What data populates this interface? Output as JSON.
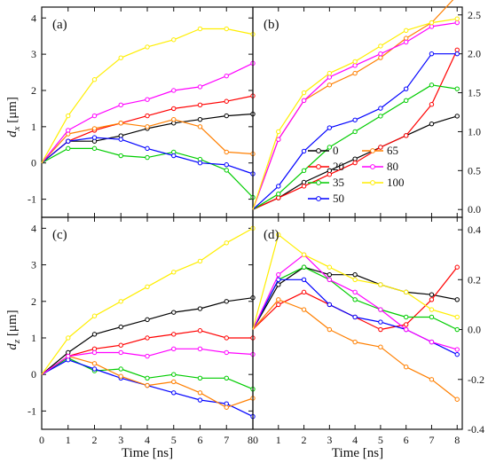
{
  "figure": {
    "x_axis_label": "Time [ns]",
    "x_ticks_left": [
      "0",
      "1",
      "2",
      "3",
      "4",
      "5",
      "6",
      "7",
      "80"
    ],
    "x_ticks_right": [
      "1",
      "2",
      "3",
      "4",
      "5",
      "6",
      "7",
      "8"
    ],
    "ylabel_top": "d",
    "ylabel_top_sub": "x",
    "ylabel_top_unit": " [μm]",
    "ylabel_bottom": "d",
    "ylabel_bottom_sub": "z",
    "ylabel_bottom_unit": " [μm]"
  },
  "legend": {
    "entries": [
      {
        "label": "0",
        "color": "#000000"
      },
      {
        "label": "65",
        "color": "#ff7f00"
      },
      {
        "label": "20",
        "color": "#ff0000"
      },
      {
        "label": "80",
        "color": "#ff00ff"
      },
      {
        "label": "35",
        "color": "#00cc00"
      },
      {
        "label": "100",
        "color": "#ffee00"
      },
      {
        "label": "50",
        "color": "#0000ff"
      }
    ]
  },
  "chart_data": [
    {
      "panel_label": "(a)",
      "type": "line",
      "xlim": [
        0,
        8
      ],
      "ylim": [
        -1.5,
        4.3
      ],
      "yticks": [
        "-1",
        "0",
        "1",
        "2",
        "3",
        "4"
      ],
      "x": [
        0,
        1,
        2,
        3,
        4,
        5,
        6,
        7,
        8
      ],
      "series": [
        {
          "name": "0",
          "color": "#000000",
          "values": [
            0,
            0.6,
            0.6,
            0.75,
            0.95,
            1.1,
            1.2,
            1.3,
            1.35
          ]
        },
        {
          "name": "20",
          "color": "#ff0000",
          "values": [
            0,
            0.6,
            0.9,
            1.1,
            1.3,
            1.5,
            1.6,
            1.7,
            1.85
          ]
        },
        {
          "name": "35",
          "color": "#00cc00",
          "values": [
            0,
            0.4,
            0.4,
            0.2,
            0.15,
            0.3,
            0.1,
            -0.2,
            -0.95
          ]
        },
        {
          "name": "50",
          "color": "#0000ff",
          "values": [
            0,
            0.6,
            0.7,
            0.65,
            0.4,
            0.2,
            0,
            -0.05,
            -0.3
          ]
        },
        {
          "name": "65",
          "color": "#ff7f00",
          "values": [
            0,
            0.8,
            0.95,
            1.1,
            1.0,
            1.2,
            1.0,
            0.3,
            0.25
          ]
        },
        {
          "name": "80",
          "color": "#ff00ff",
          "values": [
            0,
            0.9,
            1.3,
            1.6,
            1.75,
            2.0,
            2.1,
            2.4,
            2.75
          ]
        },
        {
          "name": "100",
          "color": "#ffee00",
          "values": [
            0,
            1.3,
            2.3,
            2.9,
            3.2,
            3.4,
            3.7,
            3.7,
            3.55
          ]
        }
      ]
    },
    {
      "panel_label": "(b)",
      "type": "line",
      "xlim": [
        0,
        8.2
      ],
      "ylim": [
        -0.1,
        2.6
      ],
      "yticks": [
        "0.0",
        "0.5",
        "1.0",
        "1.5",
        "2.0",
        "2.5"
      ],
      "x": [
        0,
        1,
        2,
        3,
        4,
        5,
        6,
        7,
        8
      ],
      "series": [
        {
          "name": "0",
          "color": "#000000",
          "values": [
            0,
            0.15,
            0.35,
            0.5,
            0.65,
            0.8,
            0.95,
            1.1,
            1.2
          ]
        },
        {
          "name": "20",
          "color": "#ff0000",
          "values": [
            0,
            0.15,
            0.3,
            0.45,
            0.6,
            0.8,
            0.95,
            1.35,
            2.05
          ]
        },
        {
          "name": "35",
          "color": "#00cc00",
          "values": [
            0,
            0.2,
            0.5,
            0.8,
            1.0,
            1.2,
            1.4,
            1.6,
            1.55
          ]
        },
        {
          "name": "50",
          "color": "#0000ff",
          "values": [
            0,
            0.3,
            0.75,
            1.05,
            1.15,
            1.3,
            1.55,
            2.0,
            2.0
          ]
        },
        {
          "name": "65",
          "color": "#ff7f00",
          "values": [
            0,
            0.9,
            1.4,
            1.6,
            1.75,
            1.95,
            2.2,
            2.4,
            2.75
          ]
        },
        {
          "name": "80",
          "color": "#ff00ff",
          "values": [
            0,
            0.9,
            1.4,
            1.7,
            1.85,
            2.0,
            2.15,
            2.35,
            2.4
          ]
        },
        {
          "name": "100",
          "color": "#ffee00",
          "values": [
            0,
            1.0,
            1.5,
            1.75,
            1.9,
            2.1,
            2.3,
            2.4,
            2.45
          ]
        }
      ]
    },
    {
      "panel_label": "(c)",
      "type": "line",
      "xlim": [
        0,
        8
      ],
      "ylim": [
        -1.5,
        4.3
      ],
      "yticks": [
        "-1",
        "0",
        "1",
        "2",
        "3",
        "4"
      ],
      "x": [
        0,
        1,
        2,
        3,
        4,
        5,
        6,
        7,
        8
      ],
      "series": [
        {
          "name": "0",
          "color": "#000000",
          "values": [
            0,
            0.6,
            1.1,
            1.3,
            1.5,
            1.7,
            1.8,
            2.0,
            2.1
          ]
        },
        {
          "name": "20",
          "color": "#ff0000",
          "values": [
            0,
            0.5,
            0.7,
            0.8,
            1.0,
            1.1,
            1.2,
            1.0,
            1.0
          ]
        },
        {
          "name": "35",
          "color": "#00cc00",
          "values": [
            0,
            0.45,
            0.1,
            0.15,
            -0.1,
            0.0,
            -0.1,
            -0.1,
            -0.4
          ]
        },
        {
          "name": "50",
          "color": "#0000ff",
          "values": [
            0,
            0.4,
            0.15,
            -0.1,
            -0.3,
            -0.5,
            -0.7,
            -0.8,
            -1.15
          ]
        },
        {
          "name": "65",
          "color": "#ff7f00",
          "values": [
            0,
            0.5,
            0.3,
            -0.05,
            -0.3,
            -0.2,
            -0.5,
            -0.9,
            -0.65
          ]
        },
        {
          "name": "80",
          "color": "#ff00ff",
          "values": [
            0,
            0.5,
            0.6,
            0.6,
            0.5,
            0.7,
            0.7,
            0.6,
            0.55
          ]
        },
        {
          "name": "100",
          "color": "#ffee00",
          "values": [
            0,
            1.0,
            1.6,
            2.0,
            2.4,
            2.8,
            3.1,
            3.6,
            4.0
          ]
        }
      ]
    },
    {
      "panel_label": "(d)",
      "type": "line",
      "xlim": [
        0,
        8.2
      ],
      "ylim": [
        -0.4,
        0.45
      ],
      "yticks": [
        "-0.4",
        "-0.2",
        "0.0",
        "0.2",
        "0.4"
      ],
      "x": [
        0,
        1,
        2,
        3,
        4,
        5,
        6,
        7,
        8
      ],
      "series": [
        {
          "name": "0",
          "color": "#000000",
          "values": [
            0,
            0.18,
            0.25,
            0.22,
            0.22,
            0.18,
            0.15,
            0.14,
            0.12
          ]
        },
        {
          "name": "20",
          "color": "#ff0000",
          "values": [
            0,
            0.1,
            0.15,
            0.1,
            0.05,
            0.0,
            0.02,
            0.12,
            0.25
          ]
        },
        {
          "name": "35",
          "color": "#00cc00",
          "values": [
            0,
            0.2,
            0.25,
            0.2,
            0.12,
            0.08,
            0.05,
            0.05,
            0.0
          ]
        },
        {
          "name": "50",
          "color": "#0000ff",
          "values": [
            0,
            0.2,
            0.2,
            0.1,
            0.05,
            0.03,
            0.0,
            -0.05,
            -0.1
          ]
        },
        {
          "name": "65",
          "color": "#ff7f00",
          "values": [
            0,
            0.12,
            0.08,
            0.0,
            -0.05,
            -0.07,
            -0.15,
            -0.2,
            -0.28
          ]
        },
        {
          "name": "80",
          "color": "#ff00ff",
          "values": [
            0,
            0.22,
            0.3,
            0.2,
            0.15,
            0.08,
            0.0,
            -0.05,
            -0.08
          ]
        },
        {
          "name": "100",
          "color": "#ffee00",
          "values": [
            0,
            0.38,
            0.3,
            0.25,
            0.2,
            0.18,
            0.15,
            0.08,
            0.05
          ]
        }
      ]
    }
  ]
}
